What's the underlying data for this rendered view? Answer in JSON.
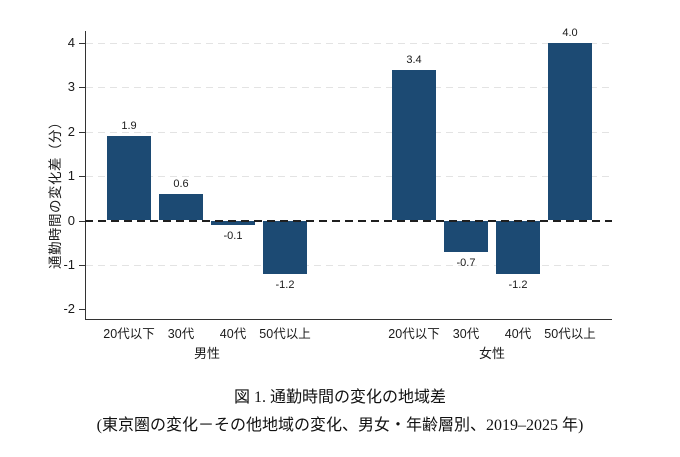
{
  "chart_data": {
    "type": "bar",
    "title": "図 1. 通勤時間の変化の地域差",
    "subtitle": "(東京圏の変化－その他地域の変化、男女・年齢層別、2019–2025 年)",
    "ylabel": "通勤時間の変化差（分）",
    "ylim": [
      -2,
      4
    ],
    "yticks": [
      -2,
      -1,
      0,
      1,
      2,
      3,
      4
    ],
    "gridline_ticks": [
      -1,
      1,
      2,
      3,
      4
    ],
    "zero_line": "dashed-black",
    "grid": "dashed-light-gray",
    "legend": "none",
    "bar_color": "#1c4a73",
    "categories": [
      "20代以下",
      "30代",
      "40代",
      "50代以上"
    ],
    "series": [
      {
        "name": "男性",
        "values": [
          1.9,
          0.6,
          -0.1,
          -1.2
        ],
        "value_labels": [
          "1.9",
          "0.6",
          "-0.1",
          "-1.2"
        ]
      },
      {
        "name": "女性",
        "values": [
          3.4,
          -0.7,
          -1.2,
          4.0
        ],
        "value_labels": [
          "3.4",
          "-0.7",
          "-1.2",
          "4.0"
        ]
      }
    ],
    "ytick_labels": [
      "-2",
      "-1",
      "0",
      "1",
      "2",
      "3",
      "4"
    ]
  },
  "caption": {
    "line1": "図 1. 通勤時間の変化の地域差",
    "line2": "(東京圏の変化－その他地域の変化、男女・年齢層別、2019–2025 年)"
  }
}
